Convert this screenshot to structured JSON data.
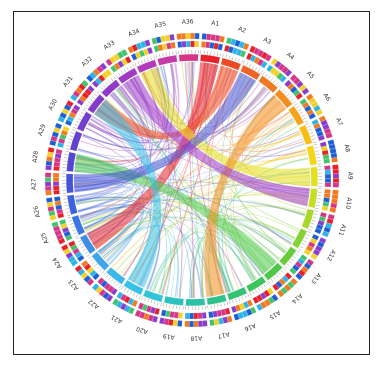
{
  "diagram": {
    "type": "chord",
    "segments": [
      {
        "label": "A1",
        "color": "#e8202a"
      },
      {
        "label": "A2",
        "color": "#ec4a24"
      },
      {
        "label": "A3",
        "color": "#ee6326"
      },
      {
        "label": "A4",
        "color": "#f07a22"
      },
      {
        "label": "A5",
        "color": "#f38e1e"
      },
      {
        "label": "A6",
        "color": "#f5a51a"
      },
      {
        "label": "A7",
        "color": "#f6bf18"
      },
      {
        "label": "A8",
        "color": "#f4d51a"
      },
      {
        "label": "A9",
        "color": "#e3e01e"
      },
      {
        "label": "A10",
        "color": "#c8de26"
      },
      {
        "label": "A11",
        "color": "#a8d82c"
      },
      {
        "label": "A12",
        "color": "#86d232"
      },
      {
        "label": "A13",
        "color": "#66cc3a"
      },
      {
        "label": "A14",
        "color": "#4fc848"
      },
      {
        "label": "A15",
        "color": "#3ec45c"
      },
      {
        "label": "A16",
        "color": "#36c274"
      },
      {
        "label": "A17",
        "color": "#30c08c"
      },
      {
        "label": "A18",
        "color": "#2cc0a6"
      },
      {
        "label": "A19",
        "color": "#2cc2c0"
      },
      {
        "label": "A20",
        "color": "#30c4d6"
      },
      {
        "label": "A21",
        "color": "#36c2e6"
      },
      {
        "label": "A22",
        "color": "#3cb8ea"
      },
      {
        "label": "A23",
        "color": "#3ea6ea"
      },
      {
        "label": "A24",
        "color": "#3e8ee8"
      },
      {
        "label": "A25",
        "color": "#3c76e4"
      },
      {
        "label": "A26",
        "color": "#3e62de"
      },
      {
        "label": "A27",
        "color": "#4652d8"
      },
      {
        "label": "A28",
        "color": "#5448d2"
      },
      {
        "label": "A29",
        "color": "#6442ce"
      },
      {
        "label": "A30",
        "color": "#743ecc"
      },
      {
        "label": "A31",
        "color": "#823cca"
      },
      {
        "label": "A32",
        "color": "#903ac8"
      },
      {
        "label": "A33",
        "color": "#a03ac4"
      },
      {
        "label": "A34",
        "color": "#b23abc"
      },
      {
        "label": "A35",
        "color": "#c43aa8"
      },
      {
        "label": "A36",
        "color": "#d63688"
      }
    ]
  }
}
